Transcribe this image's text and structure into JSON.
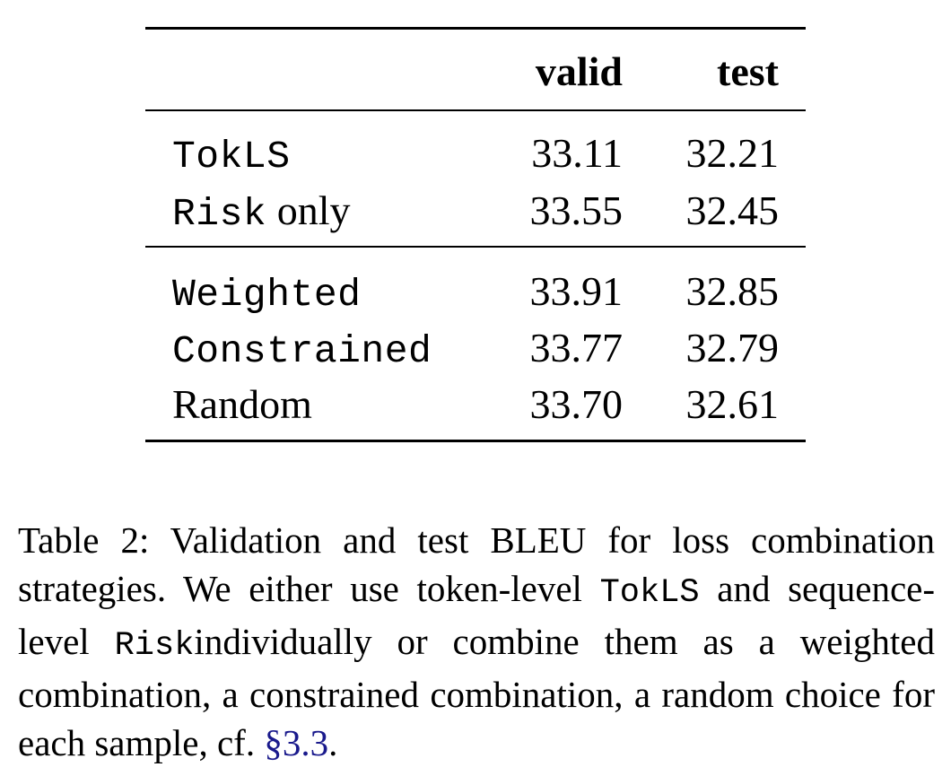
{
  "table": {
    "headers": [
      "",
      "valid",
      "test"
    ],
    "groups": [
      {
        "rows": [
          {
            "name_mono": "TokLS",
            "name_plain": "",
            "valid": "33.11",
            "test": "32.21"
          },
          {
            "name_mono": "Risk",
            "name_plain": " only",
            "valid": "33.55",
            "test": "32.45"
          }
        ]
      },
      {
        "rows": [
          {
            "name_mono": "Weighted",
            "name_plain": "",
            "valid": "33.91",
            "test": "32.85"
          },
          {
            "name_mono": "Constrained",
            "name_plain": "",
            "valid": "33.77",
            "test": "32.79"
          },
          {
            "name_mono": "",
            "name_plain": "Random",
            "valid": "33.70",
            "test": "32.61"
          }
        ]
      }
    ]
  },
  "caption": {
    "part1": "Table 2: Validation and test BLEU for loss combination strategies. We either use token-level ",
    "mono1": "TokLS",
    "part2": " and sequence-level ",
    "mono2": "Risk",
    "part3": "individually or combine them as a weighted combination, a constrained combination, a random choice for each sample, cf. ",
    "section_ref": "§3.3",
    "part4": "."
  },
  "colors": {
    "text": "#000000",
    "link": "#1a1a8c",
    "background": "#ffffff"
  }
}
